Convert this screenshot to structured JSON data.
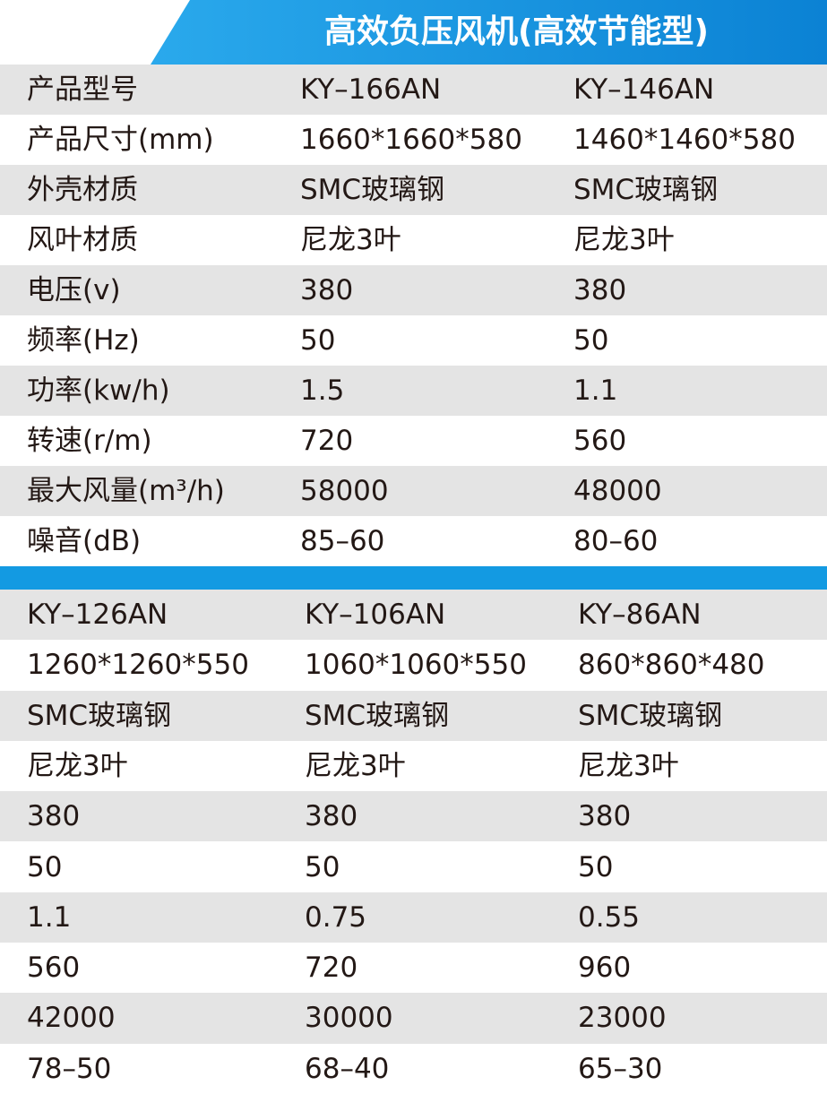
{
  "header": {
    "title": "高效负压风机(高效节能型)"
  },
  "table1": {
    "rows": [
      [
        "产品型号",
        "KY–166AN",
        "KY–146AN"
      ],
      [
        "产品尺寸(mm)",
        "1660*1660*580",
        "1460*1460*580"
      ],
      [
        "外壳材质",
        "SMC玻璃钢",
        "SMC玻璃钢"
      ],
      [
        "风叶材质",
        "尼龙3叶",
        "尼龙3叶"
      ],
      [
        "电压(v)",
        "380",
        "380"
      ],
      [
        "频率(Hz)",
        "50",
        "50"
      ],
      [
        "功率(kw/h)",
        "1.5",
        "1.1"
      ],
      [
        "转速(r/m)",
        "720",
        "560"
      ],
      [
        "最大风量(m³/h)",
        "58000",
        "48000"
      ],
      [
        "噪音(dB)",
        "85–60",
        "80–60"
      ]
    ]
  },
  "table2": {
    "rows": [
      [
        "KY–126AN",
        "KY–106AN",
        "KY–86AN"
      ],
      [
        "1260*1260*550",
        "1060*1060*550",
        "860*860*480"
      ],
      [
        "SMC玻璃钢",
        "SMC玻璃钢",
        "SMC玻璃钢"
      ],
      [
        "尼龙3叶",
        "尼龙3叶",
        "尼龙3叶"
      ],
      [
        "380",
        "380",
        "380"
      ],
      [
        "50",
        "50",
        "50"
      ],
      [
        "1.1",
        "0.75",
        "0.55"
      ],
      [
        "560",
        "720",
        "960"
      ],
      [
        "42000",
        "30000",
        "23000"
      ],
      [
        "78–50",
        "68–40",
        "65–30"
      ]
    ]
  }
}
